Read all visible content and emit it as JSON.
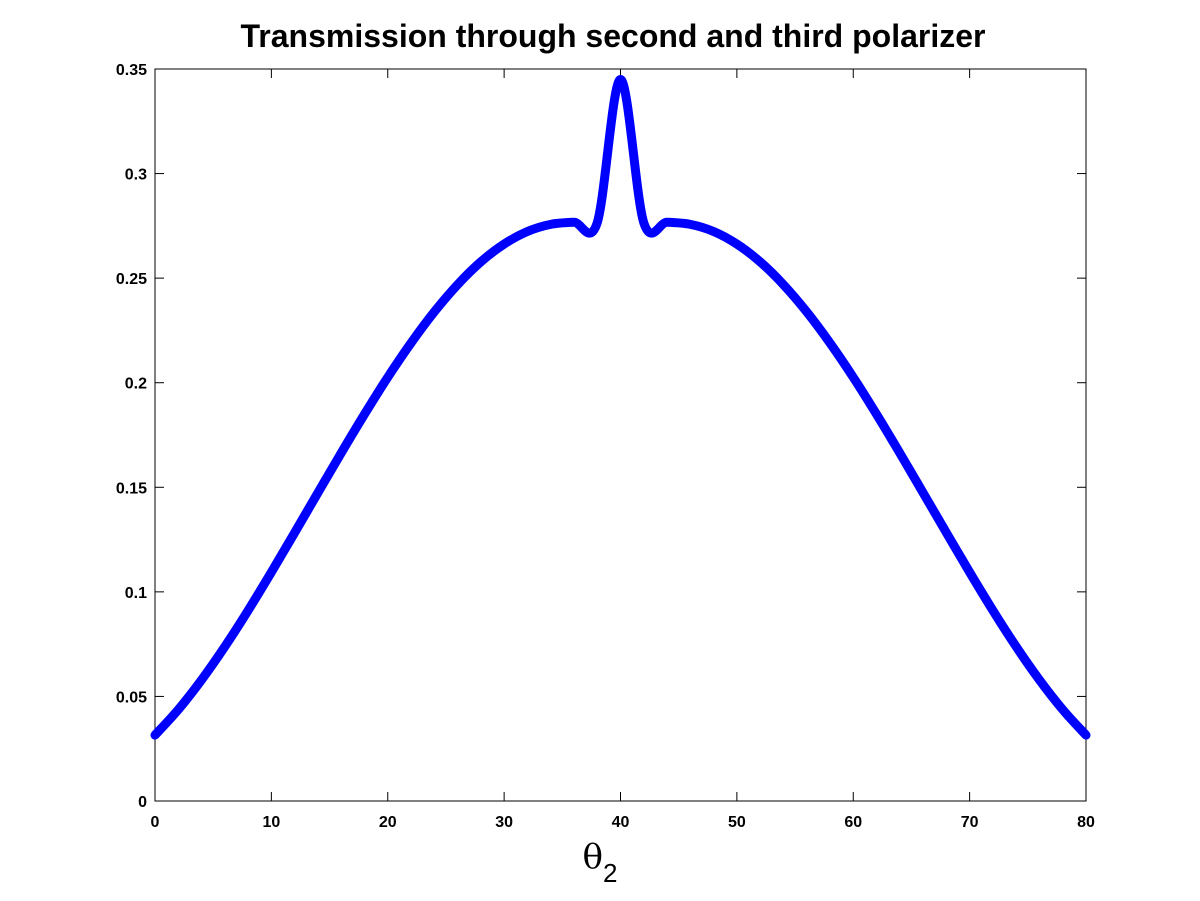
{
  "chart_data": {
    "type": "line",
    "title": "Transmission through second and third polarizer",
    "xlabel": {
      "symbol": "θ",
      "subscript": "2"
    },
    "ylabel": "",
    "xlim": [
      0,
      80
    ],
    "ylim": [
      0,
      0.35
    ],
    "xticks": [
      "0",
      "10",
      "20",
      "30",
      "40",
      "50",
      "60",
      "70",
      "80"
    ],
    "yticks": [
      "0",
      "0.05",
      "0.1",
      "0.15",
      "0.2",
      "0.25",
      "0.3",
      "0.35"
    ],
    "grid": false,
    "series": [
      {
        "color": "#0000ff",
        "x": [
          0,
          2,
          4,
          6,
          8,
          10,
          12,
          14,
          16,
          18,
          20,
          22,
          24,
          26,
          28,
          30,
          32,
          34,
          36,
          38,
          40,
          42,
          44,
          46,
          48,
          50,
          52,
          54,
          56,
          58,
          60,
          62,
          64,
          66,
          68,
          70,
          72,
          74,
          76,
          78,
          80
        ],
        "y": [
          0.0315,
          0.0437,
          0.0579,
          0.0738,
          0.0911,
          0.1094,
          0.1283,
          0.1474,
          0.1664,
          0.1849,
          0.2026,
          0.219,
          0.2339,
          0.2469,
          0.2578,
          0.2663,
          0.2723,
          0.2757,
          0.2767,
          0.2765,
          0.345,
          0.2765,
          0.2767,
          0.2757,
          0.2723,
          0.2663,
          0.2578,
          0.2469,
          0.2339,
          0.219,
          0.2026,
          0.1849,
          0.1664,
          0.1474,
          0.1283,
          0.1094,
          0.0911,
          0.0738,
          0.0579,
          0.0437,
          0.0315
        ]
      }
    ]
  }
}
